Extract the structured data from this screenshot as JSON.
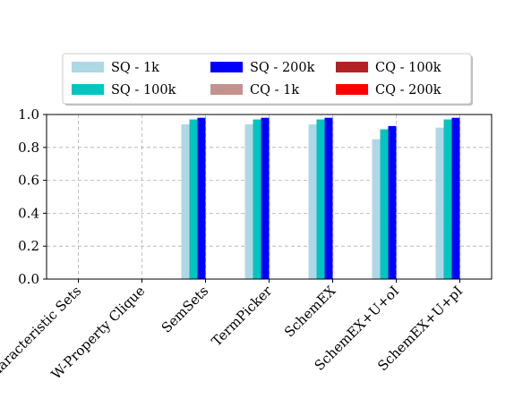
{
  "chart_data": {
    "type": "bar",
    "categories": [
      "Characteristic Sets",
      "W-Property Clique",
      "SemSets",
      "TermPicker",
      "SchemEX",
      "SchemEX+U+oI",
      "SchemEX+U+pI"
    ],
    "series": [
      {
        "name": "SQ - 1k",
        "color": "#add8e6",
        "values": [
          0,
          0,
          0.94,
          0.94,
          0.94,
          0.85,
          0.92
        ]
      },
      {
        "name": "SQ - 100k",
        "color": "#00c5c0",
        "values": [
          0,
          0,
          0.97,
          0.97,
          0.97,
          0.91,
          0.97
        ]
      },
      {
        "name": "SQ - 200k",
        "color": "#0000ff",
        "values": [
          0,
          0,
          0.98,
          0.98,
          0.98,
          0.93,
          0.98
        ]
      },
      {
        "name": "CQ - 1k",
        "color": "#c4928e",
        "values": [
          0,
          0,
          0,
          0,
          0,
          0,
          0
        ]
      },
      {
        "name": "CQ - 100k",
        "color": "#b22222",
        "values": [
          0,
          0,
          0,
          0,
          0,
          0,
          0
        ]
      },
      {
        "name": "CQ - 200k",
        "color": "#ff0000",
        "values": [
          0,
          0,
          0,
          0,
          0,
          0,
          0
        ]
      }
    ],
    "yticks": [
      "0.0",
      "0.2",
      "0.4",
      "0.6",
      "0.8",
      "1.0"
    ],
    "ylim": [
      0,
      1.0
    ],
    "grid": true,
    "legend_position": "top",
    "xlabel": "",
    "ylabel": "",
    "title": ""
  }
}
